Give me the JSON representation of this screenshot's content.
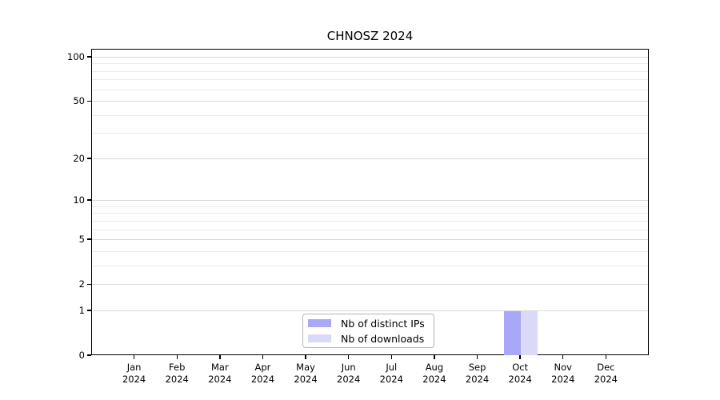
{
  "title": "CHNOSZ 2024",
  "chart_data": {
    "type": "bar",
    "title": "CHNOSZ 2024",
    "categories": [
      "Jan 2024",
      "Feb 2024",
      "Mar 2024",
      "Apr 2024",
      "May 2024",
      "Jun 2024",
      "Jul 2024",
      "Aug 2024",
      "Sep 2024",
      "Oct 2024",
      "Nov 2024",
      "Dec 2024"
    ],
    "series": [
      {
        "name": "Nb of distinct IPs",
        "color": "#a8a8f7",
        "values": [
          0,
          0,
          0,
          0,
          0,
          0,
          0,
          0,
          0,
          1,
          0,
          0
        ]
      },
      {
        "name": "Nb of downloads",
        "color": "#dadaf8",
        "values": [
          0,
          0,
          0,
          0,
          0,
          0,
          0,
          0,
          0,
          1,
          0,
          0
        ]
      }
    ],
    "xlabel": "",
    "ylabel": "",
    "y_axis": {
      "scale": "log1p",
      "tick_values": [
        0,
        1,
        2,
        5,
        10,
        20,
        50,
        100
      ],
      "minor_gridline_values": [
        1,
        2,
        3,
        4,
        5,
        6,
        7,
        8,
        9,
        10,
        20,
        30,
        40,
        50,
        60,
        70,
        80,
        90,
        100
      ],
      "range_min": 0,
      "range_max": 113
    },
    "grid": "horizontal",
    "legend_position": "inside-bottom-center"
  },
  "colors": {
    "background": "#ffffff",
    "axis": "#000000",
    "text": "#000000",
    "grid_major": "#d8d8d8",
    "grid_minor": "#ececec",
    "legend_border": "#b5b5b5"
  }
}
